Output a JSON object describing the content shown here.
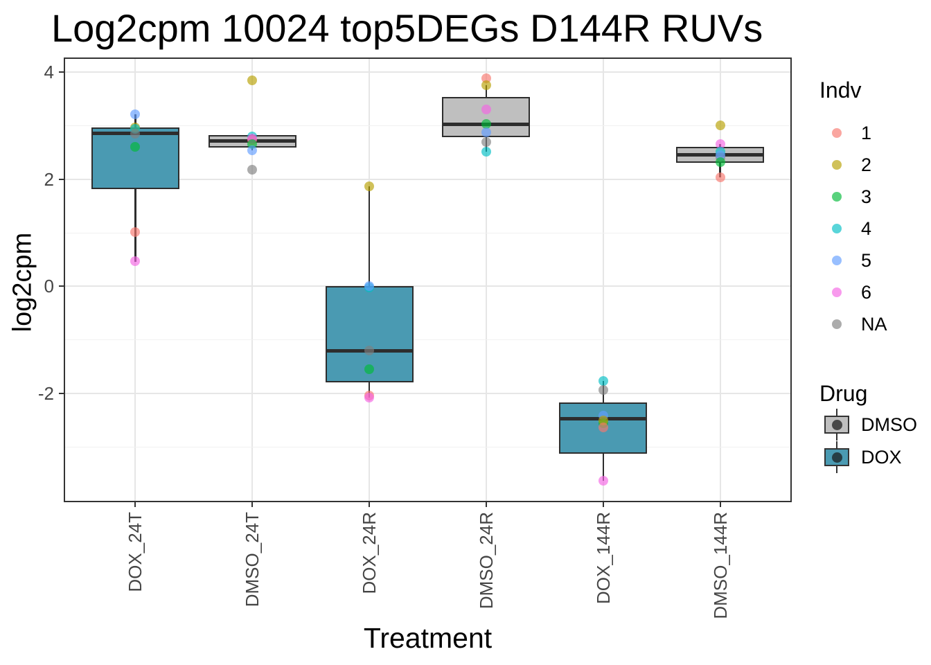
{
  "chart_data": {
    "type": "boxplot",
    "title": "Log2cpm 10024 top5DEGs D144R RUVs",
    "xlabel": "Treatment",
    "ylabel": "log2cpm",
    "ylim": [
      -4.0,
      4.245
    ],
    "y_major_ticks": [
      {
        "label": "4",
        "value": 4
      },
      {
        "label": "2",
        "value": 2
      },
      {
        "label": "0",
        "value": 0
      },
      {
        "label": "-2",
        "value": -2
      }
    ],
    "y_minor_gridlines": [
      3,
      1,
      -1,
      -3
    ],
    "grid": {
      "horizontal": "major+minor",
      "vertical": "major at each category"
    },
    "legend_position": "right",
    "categories": [
      "DOX_24T",
      "DMSO_24T",
      "DOX_24R",
      "DMSO_24R",
      "DOX_144R",
      "DMSO_144R"
    ],
    "groups": [
      {
        "category": "DOX_24T",
        "drug": "DOX",
        "box": {
          "whisker_low": 0.46,
          "q1": 1.81,
          "median": 2.85,
          "q3": 2.97,
          "whisker_high": 3.21
        },
        "points": [
          {
            "indv": "5",
            "value": 3.21
          },
          {
            "indv": "2",
            "value": 2.97
          },
          {
            "indv": "4",
            "value": 2.94
          },
          {
            "indv": "NA",
            "value": 2.85
          },
          {
            "indv": "3",
            "value": 2.61
          },
          {
            "indv": "1",
            "value": 1.02
          },
          {
            "indv": "6",
            "value": 0.47
          }
        ]
      },
      {
        "category": "DMSO_24T",
        "drug": "DMSO",
        "box": {
          "whisker_low": 2.54,
          "q1": 2.59,
          "median": 2.71,
          "q3": 2.82,
          "whisker_high": 2.84
        },
        "points": [
          {
            "indv": "2",
            "value": 3.84
          },
          {
            "indv": "4",
            "value": 2.8
          },
          {
            "indv": "1",
            "value": 2.73
          },
          {
            "indv": "6",
            "value": 2.76
          },
          {
            "indv": "3",
            "value": 2.66
          },
          {
            "indv": "5",
            "value": 2.54
          },
          {
            "indv": "NA",
            "value": 2.18
          }
        ]
      },
      {
        "category": "DOX_24R",
        "drug": "DOX",
        "box": {
          "whisker_low": -2.08,
          "q1": -1.79,
          "median": -1.2,
          "q3": 0.0,
          "whisker_high": 1.87
        },
        "points": [
          {
            "indv": "2",
            "value": 1.87
          },
          {
            "indv": "4",
            "value": -0.02
          },
          {
            "indv": "5",
            "value": 0.01
          },
          {
            "indv": "NA",
            "value": -1.2
          },
          {
            "indv": "3",
            "value": -1.54
          },
          {
            "indv": "1",
            "value": -2.04
          },
          {
            "indv": "6",
            "value": -2.08
          }
        ]
      },
      {
        "category": "DMSO_24R",
        "drug": "DMSO",
        "box": {
          "whisker_low": 2.51,
          "q1": 2.78,
          "median": 3.03,
          "q3": 3.54,
          "whisker_high": 3.76
        },
        "points": [
          {
            "indv": "1",
            "value": 3.88
          },
          {
            "indv": "2",
            "value": 3.76
          },
          {
            "indv": "6",
            "value": 3.3
          },
          {
            "indv": "3",
            "value": 3.03
          },
          {
            "indv": "5",
            "value": 2.87
          },
          {
            "indv": "NA",
            "value": 2.7
          },
          {
            "indv": "4",
            "value": 2.51
          }
        ]
      },
      {
        "category": "DOX_144R",
        "drug": "DOX",
        "box": {
          "whisker_low": -3.62,
          "q1": -3.12,
          "median": -2.47,
          "q3": -2.17,
          "whisker_high": -1.77
        },
        "points": [
          {
            "indv": "4",
            "value": -1.77
          },
          {
            "indv": "NA",
            "value": -1.93
          },
          {
            "indv": "5",
            "value": -2.41
          },
          {
            "indv": "3",
            "value": -2.55
          },
          {
            "indv": "2",
            "value": -2.5
          },
          {
            "indv": "1",
            "value": -2.63
          },
          {
            "indv": "6",
            "value": -3.62
          }
        ]
      },
      {
        "category": "DMSO_144R",
        "drug": "DMSO",
        "box": {
          "whisker_low": 2.03,
          "q1": 2.31,
          "median": 2.45,
          "q3": 2.6,
          "whisker_high": 2.66
        },
        "points": [
          {
            "indv": "2",
            "value": 3.0
          },
          {
            "indv": "6",
            "value": 2.65
          },
          {
            "indv": "4",
            "value": 2.51
          },
          {
            "indv": "NA",
            "value": 2.41
          },
          {
            "indv": "5",
            "value": 2.45
          },
          {
            "indv": "3",
            "value": 2.32
          },
          {
            "indv": "1",
            "value": 2.03
          }
        ]
      }
    ],
    "legend": {
      "indv_title": "Indv",
      "indv_items": [
        {
          "label": "1",
          "color": "#F8766D"
        },
        {
          "label": "2",
          "color": "#B79F00"
        },
        {
          "label": "3",
          "color": "#00BA38"
        },
        {
          "label": "4",
          "color": "#00BFC4"
        },
        {
          "label": "5",
          "color": "#619CFF"
        },
        {
          "label": "6",
          "color": "#F564E3"
        },
        {
          "label": "NA",
          "color": "#7F7F7F"
        }
      ],
      "drug_title": "Drug",
      "drug_items": [
        {
          "label": "DMSO",
          "fill": "#BFBFBF"
        },
        {
          "label": "DOX",
          "fill": "#4A9AB2"
        }
      ]
    },
    "colors": {
      "dox_fill": "#4A9AB2",
      "dmso_fill": "#BFBFBF",
      "box_border": "#2d2d2d",
      "point_opacity": 0.65,
      "grid_major": "#e6e6e6",
      "grid_minor": "#f1f1f1"
    }
  }
}
